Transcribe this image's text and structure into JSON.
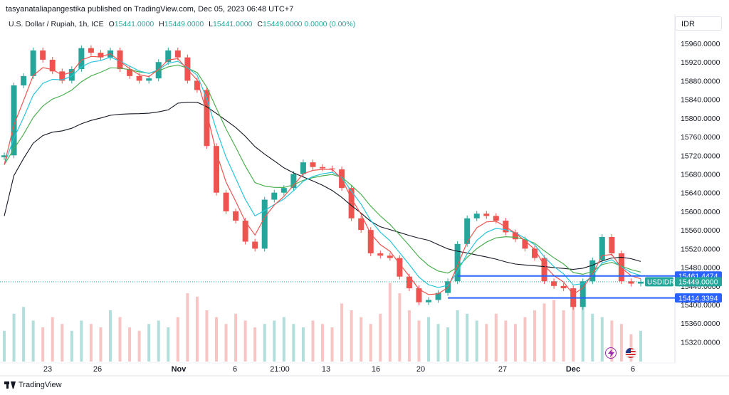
{
  "publisher": "tasyanataliapangestika published on TradingView.com, Dec 05, 2023 06:48 UTC+7",
  "legend": {
    "symbol": "U.S. Dollar / Rupiah, 1h, ICE",
    "o_label": "O",
    "o_value": "15441.0000",
    "h_label": "H",
    "h_value": "15449.0000",
    "l_label": "L",
    "l_value": "15441.0000",
    "c_label": "C",
    "c_value": "15449.0000",
    "chg": "0.0000 (0.00%)"
  },
  "currency": "IDR",
  "footer": {
    "brand": "TradingView"
  },
  "icons": {
    "lightning": "lightning-icon",
    "flag": "us-flag-icon"
  },
  "colors": {
    "up": "#26a69a",
    "down": "#ef5350",
    "ema_fast": "#ef5350",
    "ema_mid": "#26c6da",
    "ema_slow": "#4caf50",
    "ema_long": "#131722",
    "level": "#2962ff",
    "pricetag": "#26a69a"
  },
  "chart_data": {
    "type": "candlestick",
    "ylim": [
      15290,
      15990
    ],
    "y_ticks": [
      "15960.0000",
      "15920.0000",
      "15880.0000",
      "15840.0000",
      "15800.0000",
      "15760.0000",
      "15720.0000",
      "15680.0000",
      "15640.0000",
      "15600.0000",
      "15560.0000",
      "15520.0000",
      "15480.0000",
      "15440.0000",
      "15400.0000",
      "15360.0000",
      "15320.0000"
    ],
    "x_ticks": [
      "23",
      "26",
      "Nov",
      "6",
      "21:00",
      "13",
      "16",
      "20",
      "27",
      "Dec",
      "6"
    ],
    "price_tags": [
      {
        "label": "",
        "value": "15461.4474",
        "color": "#2962ff"
      },
      {
        "label": "USDIDR",
        "value": "15449.0000",
        "color": "#26a69a"
      },
      {
        "label": "",
        "value": "15414.3394",
        "color": "#2962ff"
      }
    ],
    "levels": [
      {
        "from_index": 47,
        "value": 15461.4474
      },
      {
        "from_index": 46,
        "value": 15414.3394
      }
    ],
    "closes": [
      15720,
      15870,
      15890,
      15945,
      15925,
      15900,
      15880,
      15905,
      15950,
      15940,
      15930,
      15945,
      15905,
      15890,
      15880,
      15885,
      15920,
      15945,
      15930,
      15880,
      15860,
      15740,
      15640,
      15600,
      15580,
      15535,
      15520,
      15625,
      15640,
      15650,
      15680,
      15705,
      15695,
      15692,
      15690,
      15650,
      15585,
      15560,
      15510,
      15505,
      15500,
      15460,
      15435,
      15405,
      15410,
      15425,
      15450,
      15530,
      15585,
      15595,
      15590,
      15580,
      15555,
      15540,
      15520,
      15500,
      15450,
      15440,
      15435,
      15395,
      15450,
      15495,
      15545,
      15510,
      15450,
      15445,
      15449
    ],
    "volume": [
      18,
      28,
      32,
      24,
      20,
      26,
      22,
      18,
      24,
      22,
      20,
      30,
      26,
      20,
      18,
      22,
      24,
      20,
      26,
      40,
      38,
      30,
      26,
      22,
      28,
      24,
      20,
      22,
      24,
      26,
      22,
      20,
      24,
      22,
      20,
      34,
      30,
      26,
      22,
      28,
      46,
      40,
      30,
      24,
      26,
      22,
      20,
      30,
      28,
      24,
      22,
      28,
      24,
      22,
      26,
      30,
      34,
      36,
      30,
      40,
      32,
      28,
      26,
      24,
      22,
      16,
      18
    ]
  }
}
